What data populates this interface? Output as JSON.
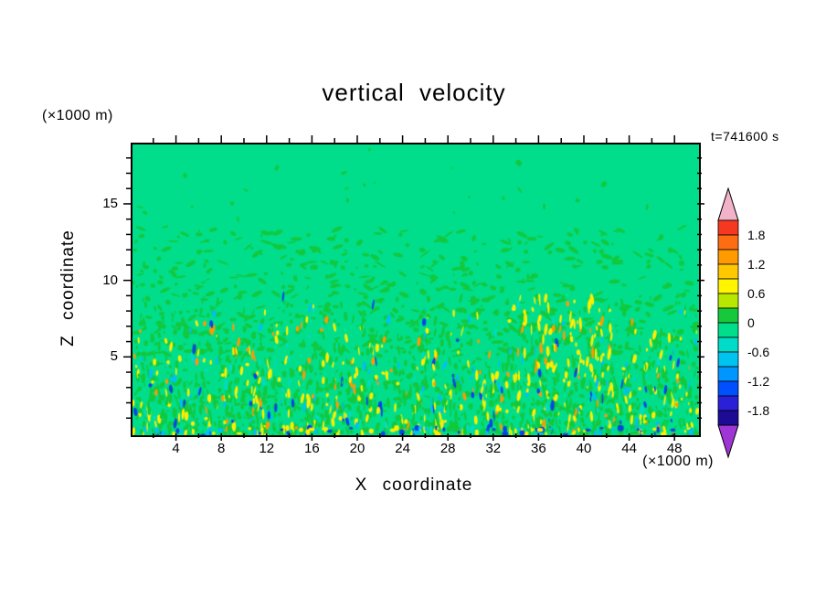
{
  "chart_data": {
    "type": "heatmap",
    "title": "vertical velocity",
    "xlabel": "X coordinate",
    "ylabel": "Z coordinate",
    "x_unit_label": "(×1000 m)",
    "y_unit_label": "(×1000 m)",
    "time_label": "t=741600 s",
    "xlim": [
      0,
      50
    ],
    "ylim": [
      0,
      19
    ],
    "x_major_ticks": [
      4,
      8,
      12,
      16,
      20,
      24,
      28,
      32,
      36,
      40,
      44,
      48
    ],
    "x_minor_step": 2,
    "y_major_ticks": [
      5,
      10,
      15
    ],
    "y_minor_step": 1,
    "grid": false,
    "legend_position": "right-colorbar",
    "colorbar": {
      "tick_labels": [
        "1.8",
        "1.2",
        "0.6",
        "0",
        "-0.6",
        "-1.2",
        "-1.8"
      ],
      "level_step": 0.3,
      "levels": [
        2.1,
        1.8,
        1.5,
        1.2,
        0.9,
        0.6,
        0.3,
        0,
        -0.3,
        -0.6,
        -0.9,
        -1.2,
        -1.5,
        -1.8,
        -2.1
      ],
      "cell_colors_top_to_bottom": [
        "#f63822",
        "#ff6d12",
        "#ff9b00",
        "#ffc800",
        "#fff500",
        "#b8e800",
        "#17c93a",
        "#00de8c",
        "#00dcc8",
        "#00c4f0",
        "#0096ff",
        "#0050ff",
        "#2a20d8",
        "#1d0b96"
      ],
      "over_arrow_color": "#f2b3c9",
      "under_arrow_color": "#a035d5"
    },
    "field": {
      "description": "Turbulent vertical-velocity cross-section: near-zero background (spring green) aloft with scattered weak updraft speckles (green); fine-grained stronger updrafts (yellow/orange) and downdrafts (cyan/blue) concentrated in the lowest levels near the surface.",
      "background_color": "#00de8c",
      "background_value_range": "-0.3 to 0",
      "speckle_colors": {
        "weak_updraft": "#12c93e",
        "updraft": "#ffee00",
        "strong_updraft": "#ff9a00",
        "downdraft": "#00c0f5",
        "strong_downdraft": "#0345e8",
        "turquoise": "#00dcc8"
      }
    }
  }
}
